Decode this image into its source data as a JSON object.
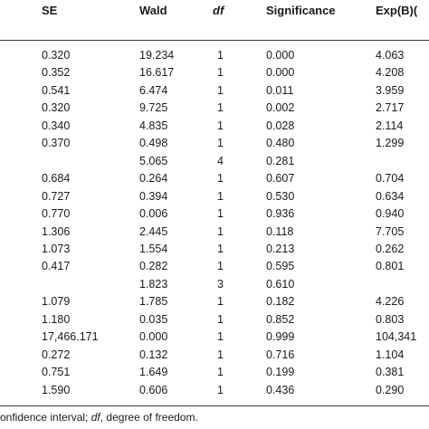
{
  "headers": [
    "SE",
    "Wald",
    "df",
    "Significance",
    "Exp(B)("
  ],
  "rows": [
    [
      "0.320",
      "19.234",
      "1",
      "0.000",
      "4.063"
    ],
    [
      "0.352",
      "16.617",
      "1",
      "0.000",
      "4.208"
    ],
    [
      "0.541",
      "6.474",
      "1",
      "0.011",
      "3.959"
    ],
    [
      "0.320",
      "9.725",
      "1",
      "0.002",
      "2.717"
    ],
    [
      "0.340",
      "4.835",
      "1",
      "0.028",
      "2.114"
    ],
    [
      "0.370",
      "0.498",
      "1",
      "0.480",
      "1.299"
    ],
    [
      "",
      "5.065",
      "4",
      "0.281",
      ""
    ],
    [
      "0.684",
      "0.264",
      "1",
      "0.607",
      "0.704"
    ],
    [
      "0.727",
      "0.394",
      "1",
      "0.530",
      "0.634"
    ],
    [
      "0.770",
      "0.006",
      "1",
      "0.936",
      "0.940"
    ],
    [
      "1.306",
      "2.445",
      "1",
      "0.118",
      "7.705"
    ],
    [
      "1.073",
      "1.554",
      "1",
      "0.213",
      "0.262"
    ],
    [
      "0.417",
      "0.282",
      "1",
      "0.595",
      "0.801"
    ],
    [
      "",
      "1.823",
      "3",
      "0.610",
      ""
    ],
    [
      "1.079",
      "1.785",
      "1",
      "0.182",
      "4.226"
    ],
    [
      "1.180",
      "0.035",
      "1",
      "0.852",
      "0.803"
    ],
    [
      "17,466.171",
      "0.000",
      "1",
      "0.999",
      "104,341"
    ],
    [
      "0.272",
      "0.132",
      "1",
      "0.716",
      "1.104"
    ],
    [
      "0.751",
      "1.649",
      "1",
      "0.199",
      "0.381"
    ],
    [
      "1.590",
      "0.606",
      "1",
      "0.436",
      "0.290"
    ]
  ],
  "footnote": {
    "part1": "onfidence interval; ",
    "df_term": "df",
    "part2": ", degree of freedom."
  }
}
